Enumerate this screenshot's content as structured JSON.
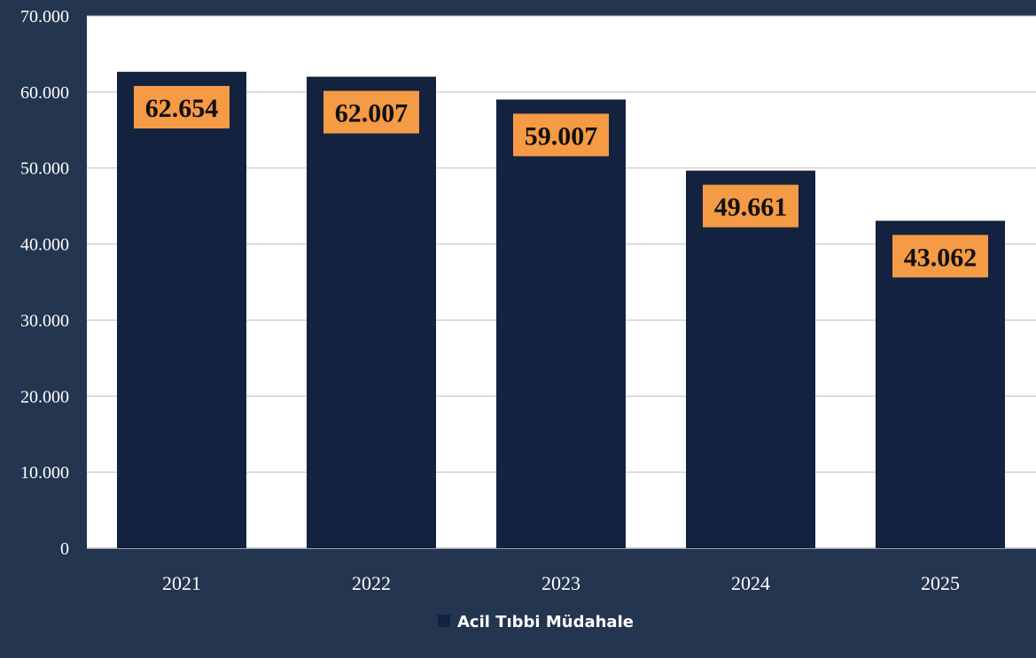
{
  "chart_data": {
    "type": "bar",
    "categories": [
      "2021",
      "2022",
      "2023",
      "2024",
      "2025"
    ],
    "series": [
      {
        "name": "Acil Tıbbi Müdahale",
        "values": [
          62654,
          62007,
          59007,
          49661,
          43062
        ],
        "data_labels": [
          "62.654",
          "62.007",
          "59.007",
          "49.661",
          "43.062"
        ],
        "color": "#13233f"
      }
    ],
    "title": "",
    "xlabel": "",
    "ylabel": "",
    "ylim": [
      0,
      70000
    ],
    "y_ticks": [
      0,
      10000,
      20000,
      30000,
      40000,
      50000,
      60000,
      70000
    ],
    "y_tick_labels": [
      "0",
      "10.000",
      "20.000",
      "30.000",
      "40.000",
      "50.000",
      "60.000",
      "70.000"
    ],
    "grid": true,
    "legend": {
      "position": "bottom",
      "label": "Acil Tıbbi Müdahale"
    },
    "colors": {
      "background": "#243550",
      "plot_area": "#ffffff",
      "bar": "#13233f",
      "label_box": "#f59a45",
      "gridline": "#bfbfbf",
      "text": "#ffffff"
    }
  }
}
